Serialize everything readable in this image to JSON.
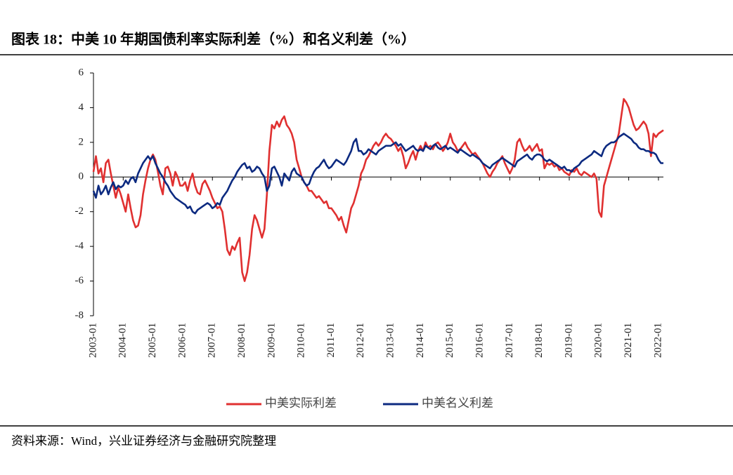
{
  "chart_data": {
    "type": "line",
    "title": "图表 18：中美 10 年期国债利率实际利差（%）和名义利差（%）",
    "source": "资料来源：Wind，兴业证券经济与金融研究院整理",
    "categories": [
      "2003-01",
      null,
      null,
      null,
      null,
      null,
      null,
      null,
      null,
      null,
      null,
      null,
      "2004-01",
      null,
      null,
      null,
      null,
      null,
      null,
      null,
      null,
      null,
      null,
      null,
      "2005-01",
      null,
      null,
      null,
      null,
      null,
      null,
      null,
      null,
      null,
      null,
      null,
      "2006-01",
      null,
      null,
      null,
      null,
      null,
      null,
      null,
      null,
      null,
      null,
      null,
      "2007-01",
      null,
      null,
      null,
      null,
      null,
      null,
      null,
      null,
      null,
      null,
      null,
      "2008-01",
      null,
      null,
      null,
      null,
      null,
      null,
      null,
      null,
      null,
      null,
      null,
      "2009-01",
      null,
      null,
      null,
      null,
      null,
      null,
      null,
      null,
      null,
      null,
      null,
      "2010-01",
      null,
      null,
      null,
      null,
      null,
      null,
      null,
      null,
      null,
      null,
      null,
      "2011-01",
      null,
      null,
      null,
      null,
      null,
      null,
      null,
      null,
      null,
      null,
      null,
      "2012-01",
      null,
      null,
      null,
      null,
      null,
      null,
      null,
      null,
      null,
      null,
      null,
      "2013-01",
      null,
      null,
      null,
      null,
      null,
      null,
      null,
      null,
      null,
      null,
      null,
      "2014-01",
      null,
      null,
      null,
      null,
      null,
      null,
      null,
      null,
      null,
      null,
      null,
      "2015-01",
      null,
      null,
      null,
      null,
      null,
      null,
      null,
      null,
      null,
      null,
      null,
      "2016-01",
      null,
      null,
      null,
      null,
      null,
      null,
      null,
      null,
      null,
      null,
      null,
      "2017-01",
      null,
      null,
      null,
      null,
      null,
      null,
      null,
      null,
      null,
      null,
      null,
      "2018-01",
      null,
      null,
      null,
      null,
      null,
      null,
      null,
      null,
      null,
      null,
      null,
      "2019-01",
      null,
      null,
      null,
      null,
      null,
      null,
      null,
      null,
      null,
      null,
      null,
      "2020-01",
      null,
      null,
      null,
      null,
      null,
      null,
      null,
      null,
      null,
      null,
      null,
      "2021-01",
      null,
      null,
      null,
      null,
      null,
      null,
      null,
      null,
      null,
      null,
      null,
      "2022-01",
      null,
      null
    ],
    "series": [
      {
        "name": "中美实际利差",
        "color": "#e03030",
        "values": [
          0.3,
          1.2,
          0.2,
          0.5,
          -0.3,
          0.8,
          1.0,
          0.2,
          -0.5,
          -1.2,
          -0.6,
          -1.0,
          -1.5,
          -2.0,
          -1.0,
          -1.8,
          -2.5,
          -2.9,
          -2.8,
          -2.2,
          -1.0,
          -0.2,
          0.5,
          1.0,
          1.3,
          1.0,
          0.3,
          -0.5,
          -1.0,
          0.5,
          0.6,
          0.2,
          -0.5,
          0.3,
          0.0,
          -0.5,
          -0.5,
          -0.3,
          -0.8,
          -0.2,
          0.2,
          -0.5,
          -0.9,
          -1.0,
          -0.4,
          -0.2,
          -0.5,
          -0.8,
          -1.2,
          -1.5,
          -1.8,
          -1.7,
          -2.0,
          -3.0,
          -4.2,
          -4.5,
          -4.0,
          -4.2,
          -3.8,
          -3.5,
          -5.5,
          -6.0,
          -5.5,
          -4.5,
          -3.0,
          -2.2,
          -2.5,
          -3.0,
          -3.5,
          -3.0,
          -1.0,
          1.5,
          3.0,
          2.8,
          3.2,
          2.9,
          3.3,
          3.5,
          3.0,
          2.8,
          2.5,
          2.0,
          1.0,
          0.5,
          0.0,
          -0.3,
          -0.5,
          -0.8,
          -0.8,
          -1.0,
          -1.2,
          -1.1,
          -1.3,
          -1.5,
          -1.4,
          -1.8,
          -1.8,
          -2.0,
          -2.2,
          -2.5,
          -2.3,
          -2.8,
          -3.2,
          -2.5,
          -1.8,
          -1.5,
          -1.0,
          -0.5,
          0.2,
          0.5,
          1.0,
          1.2,
          1.5,
          1.8,
          2.0,
          1.8,
          2.0,
          2.3,
          2.5,
          2.3,
          2.2,
          2.0,
          1.8,
          1.5,
          1.7,
          1.2,
          0.5,
          0.8,
          1.2,
          1.5,
          1.0,
          1.5,
          1.8,
          1.5,
          2.0,
          1.7,
          1.8,
          1.6,
          1.9,
          2.0,
          1.8,
          1.5,
          1.7,
          2.0,
          2.5,
          2.0,
          1.8,
          1.5,
          1.6,
          1.8,
          2.0,
          1.7,
          1.5,
          1.3,
          1.4,
          1.2,
          1.0,
          0.8,
          0.5,
          0.2,
          0.0,
          0.3,
          0.5,
          0.8,
          1.0,
          1.2,
          0.8,
          0.5,
          0.2,
          0.5,
          1.0,
          2.0,
          2.2,
          1.8,
          1.5,
          1.6,
          1.8,
          1.5,
          1.7,
          1.9,
          1.5,
          1.6,
          0.5,
          0.8,
          0.7,
          0.8,
          0.6,
          0.7,
          0.4,
          0.5,
          0.3,
          0.2,
          0.1,
          0.4,
          0.3,
          0.5,
          0.2,
          0.1,
          0.3,
          0.2,
          0.1,
          0.0,
          0.2,
          -0.1,
          -2.0,
          -2.3,
          -0.5,
          0.0,
          0.5,
          1.0,
          1.5,
          2.0,
          2.5,
          3.5,
          4.5,
          4.3,
          4.0,
          3.5,
          3.0,
          2.7,
          2.8,
          3.0,
          3.2,
          3.0,
          2.5,
          1.2,
          2.5,
          2.3,
          2.5,
          2.6,
          2.7
        ]
      },
      {
        "name": "中美名义利差",
        "color": "#0c2a80",
        "values": [
          -0.8,
          -1.2,
          -0.5,
          -1.0,
          -0.8,
          -0.5,
          -1.0,
          -0.6,
          -0.3,
          -0.7,
          -0.5,
          -0.6,
          -0.5,
          -0.2,
          -0.4,
          -0.1,
          0.0,
          -0.3,
          0.2,
          0.5,
          0.8,
          1.0,
          1.2,
          1.0,
          1.2,
          0.8,
          0.5,
          0.2,
          0.0,
          -0.3,
          -0.5,
          -0.8,
          -1.0,
          -1.2,
          -1.3,
          -1.4,
          -1.5,
          -1.6,
          -1.8,
          -1.7,
          -2.0,
          -2.1,
          -1.9,
          -1.8,
          -1.7,
          -1.6,
          -1.5,
          -1.6,
          -1.8,
          -1.7,
          -1.5,
          -1.6,
          -1.2,
          -1.0,
          -0.8,
          -0.5,
          -0.2,
          0.0,
          0.3,
          0.5,
          0.7,
          0.8,
          0.5,
          0.6,
          0.3,
          0.4,
          0.6,
          0.5,
          0.2,
          0.0,
          -0.8,
          -0.5,
          0.5,
          0.6,
          0.3,
          0.0,
          -0.5,
          0.2,
          0.0,
          -0.2,
          0.3,
          0.5,
          0.2,
          0.1,
          0.0,
          -0.3,
          -0.5,
          -0.4,
          0.0,
          0.3,
          0.5,
          0.6,
          0.8,
          1.0,
          0.7,
          0.5,
          0.6,
          0.8,
          1.0,
          0.9,
          0.8,
          0.7,
          0.9,
          1.2,
          1.5,
          2.0,
          2.2,
          1.5,
          1.5,
          1.3,
          1.4,
          1.6,
          1.5,
          1.4,
          1.3,
          1.5,
          1.6,
          1.7,
          1.8,
          1.8,
          1.8,
          1.9,
          2.0,
          1.8,
          1.9,
          1.7,
          1.5,
          1.6,
          1.7,
          1.8,
          1.6,
          1.5,
          1.6,
          1.5,
          1.8,
          1.7,
          1.6,
          1.8,
          1.9,
          1.7,
          1.6,
          1.7,
          1.8,
          1.6,
          1.7,
          1.6,
          1.5,
          1.4,
          1.6,
          1.5,
          1.4,
          1.3,
          1.2,
          1.3,
          1.2,
          1.1,
          1.0,
          0.8,
          0.7,
          0.6,
          0.5,
          0.7,
          0.8,
          0.9,
          1.0,
          1.1,
          1.0,
          0.9,
          0.8,
          0.7,
          0.6,
          0.9,
          1.0,
          1.1,
          1.2,
          1.3,
          1.1,
          1.0,
          1.2,
          1.3,
          1.3,
          1.2,
          1.0,
          0.9,
          1.0,
          0.9,
          0.8,
          0.7,
          0.6,
          0.5,
          0.6,
          0.4,
          0.4,
          0.3,
          0.5,
          0.6,
          0.7,
          0.9,
          1.0,
          1.1,
          1.2,
          1.3,
          1.5,
          1.4,
          1.3,
          1.2,
          1.6,
          1.8,
          1.9,
          2.0,
          2.0,
          2.1,
          2.3,
          2.4,
          2.5,
          2.4,
          2.3,
          2.2,
          2.0,
          1.9,
          1.7,
          1.6,
          1.6,
          1.5,
          1.5,
          1.4,
          1.4,
          1.3,
          1.0,
          0.8,
          0.8
        ]
      }
    ],
    "ylim": [
      -8,
      6
    ],
    "yticks": [
      6,
      4,
      2,
      0,
      -2,
      -4,
      -6,
      -8
    ]
  }
}
